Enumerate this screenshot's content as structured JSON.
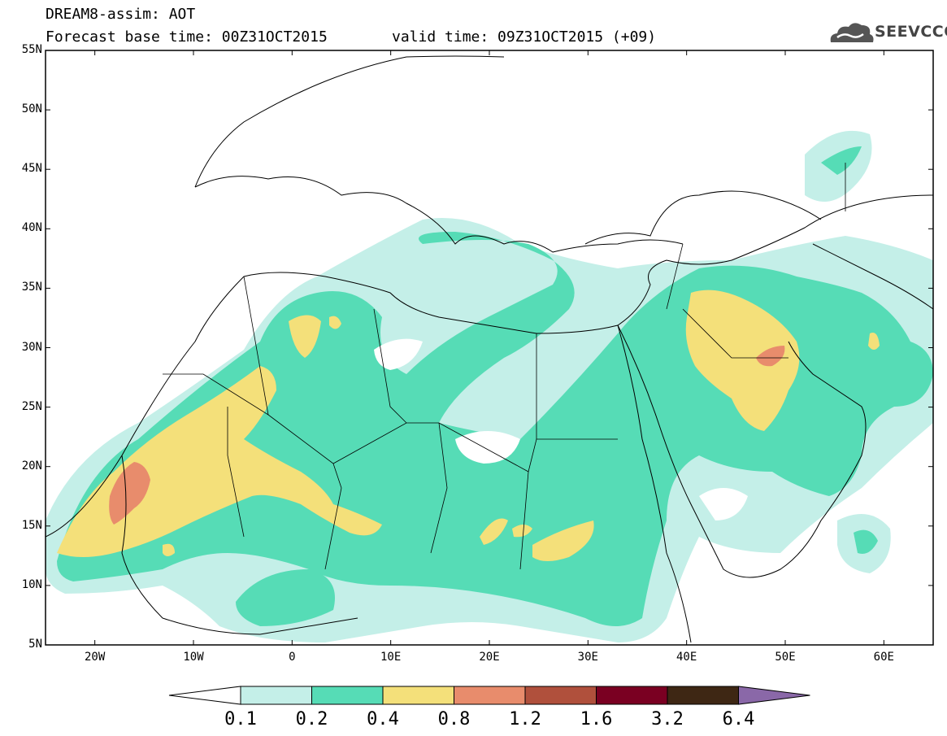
{
  "title": {
    "line1": "DREAM8-assim: AOT",
    "line2": "Forecast base time: 00Z31OCT2015",
    "valid": "valid time: 09Z31OCT2015 (+09)"
  },
  "logo": {
    "text": "SEEVCCC",
    "icon": "cloud-icon"
  },
  "map": {
    "lat_labels": [
      "55N",
      "50N",
      "45N",
      "40N",
      "35N",
      "30N",
      "25N",
      "20N",
      "15N",
      "10N",
      "5N"
    ],
    "lon_labels": [
      "20W",
      "10W",
      "0",
      "10E",
      "20E",
      "30E",
      "40E",
      "50E",
      "60E"
    ],
    "extent": {
      "lon": [
        -25,
        65
      ],
      "lat": [
        5,
        55
      ]
    }
  },
  "colorbar": {
    "labels": [
      "0.1",
      "0.2",
      "0.4",
      "0.8",
      "1.2",
      "1.6",
      "3.2",
      "6.4"
    ],
    "colors": [
      "#ffffff",
      "#c4efe8",
      "#56dcb6",
      "#f4e07a",
      "#e88c6c",
      "#b0503c",
      "#7a0022",
      "#3e2714",
      "#8a68a8"
    ]
  }
}
